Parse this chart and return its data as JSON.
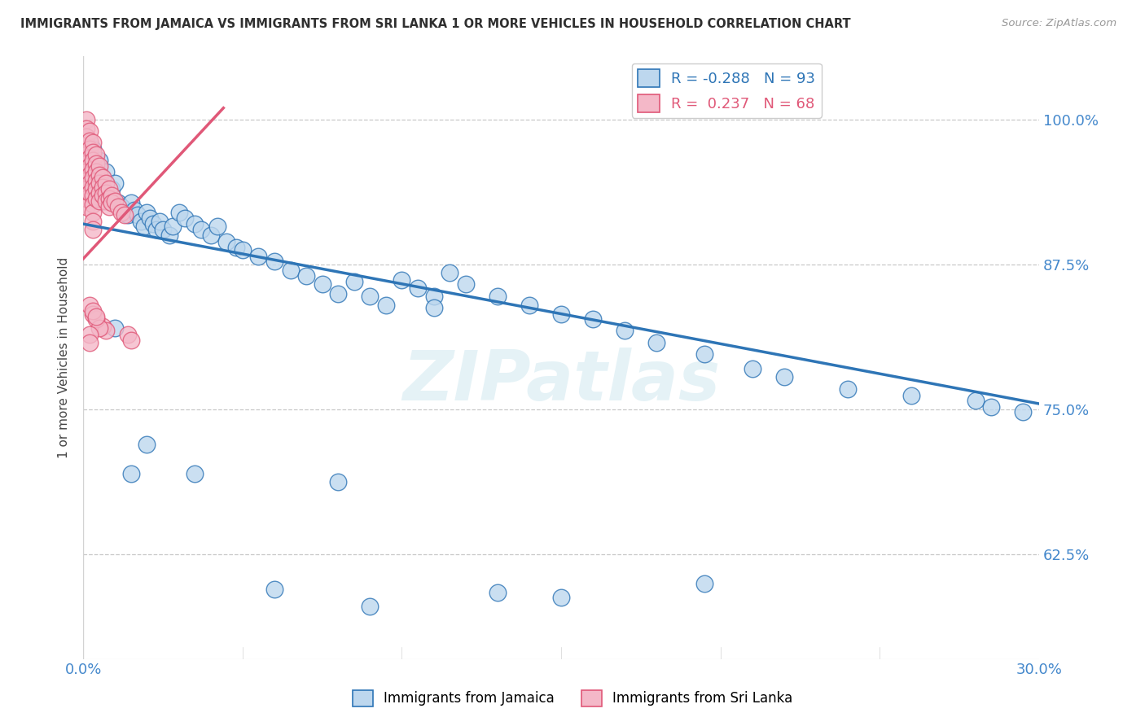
{
  "title": "IMMIGRANTS FROM JAMAICA VS IMMIGRANTS FROM SRI LANKA 1 OR MORE VEHICLES IN HOUSEHOLD CORRELATION CHART",
  "source": "Source: ZipAtlas.com",
  "ylabel": "1 or more Vehicles in Household",
  "ytick_labels": [
    "100.0%",
    "87.5%",
    "75.0%",
    "62.5%"
  ],
  "ytick_values": [
    1.0,
    0.875,
    0.75,
    0.625
  ],
  "xmin": 0.0,
  "xmax": 0.3,
  "ymin": 0.535,
  "ymax": 1.055,
  "color_jamaica": "#bdd7ee",
  "color_srilanka": "#f4b8c8",
  "line_color_jamaica": "#2e75b6",
  "line_color_srilanka": "#e05878",
  "watermark": "ZIPatlas",
  "background_color": "#ffffff",
  "grid_color": "#c8c8c8",
  "title_color": "#2f2f2f",
  "axis_color": "#4488cc",
  "jamaica_x": [
    0.001,
    0.001,
    0.002,
    0.002,
    0.002,
    0.003,
    0.003,
    0.003,
    0.003,
    0.004,
    0.004,
    0.004,
    0.005,
    0.005,
    0.005,
    0.005,
    0.006,
    0.006,
    0.006,
    0.007,
    0.007,
    0.007,
    0.008,
    0.008,
    0.009,
    0.009,
    0.01,
    0.01,
    0.011,
    0.012,
    0.013,
    0.014,
    0.015,
    0.016,
    0.017,
    0.018,
    0.019,
    0.02,
    0.021,
    0.022,
    0.023,
    0.024,
    0.025,
    0.027,
    0.028,
    0.03,
    0.032,
    0.035,
    0.037,
    0.04,
    0.042,
    0.045,
    0.048,
    0.05,
    0.055,
    0.06,
    0.065,
    0.07,
    0.075,
    0.08,
    0.085,
    0.09,
    0.095,
    0.1,
    0.105,
    0.11,
    0.115,
    0.12,
    0.13,
    0.14,
    0.15,
    0.16,
    0.17,
    0.18,
    0.195,
    0.21,
    0.22,
    0.24,
    0.26,
    0.28,
    0.285,
    0.295,
    0.09,
    0.13,
    0.15,
    0.195,
    0.11,
    0.06,
    0.08,
    0.035,
    0.02,
    0.015,
    0.01
  ],
  "jamaica_y": [
    0.96,
    0.975,
    0.95,
    0.965,
    0.98,
    0.945,
    0.955,
    0.965,
    0.975,
    0.94,
    0.952,
    0.965,
    0.935,
    0.945,
    0.955,
    0.965,
    0.93,
    0.94,
    0.95,
    0.935,
    0.945,
    0.955,
    0.93,
    0.94,
    0.935,
    0.94,
    0.93,
    0.945,
    0.928,
    0.925,
    0.92,
    0.918,
    0.928,
    0.922,
    0.918,
    0.912,
    0.908,
    0.92,
    0.915,
    0.91,
    0.905,
    0.912,
    0.905,
    0.9,
    0.908,
    0.92,
    0.915,
    0.91,
    0.905,
    0.9,
    0.908,
    0.895,
    0.89,
    0.888,
    0.882,
    0.878,
    0.87,
    0.865,
    0.858,
    0.85,
    0.86,
    0.848,
    0.84,
    0.862,
    0.855,
    0.848,
    0.868,
    0.858,
    0.848,
    0.84,
    0.832,
    0.828,
    0.818,
    0.808,
    0.798,
    0.785,
    0.778,
    0.768,
    0.762,
    0.758,
    0.752,
    0.748,
    0.58,
    0.592,
    0.588,
    0.6,
    0.838,
    0.595,
    0.688,
    0.695,
    0.72,
    0.695,
    0.82
  ],
  "srilanka_x": [
    0.001,
    0.001,
    0.001,
    0.001,
    0.001,
    0.001,
    0.001,
    0.001,
    0.001,
    0.001,
    0.001,
    0.002,
    0.002,
    0.002,
    0.002,
    0.002,
    0.002,
    0.002,
    0.002,
    0.003,
    0.003,
    0.003,
    0.003,
    0.003,
    0.003,
    0.003,
    0.003,
    0.003,
    0.003,
    0.003,
    0.004,
    0.004,
    0.004,
    0.004,
    0.004,
    0.004,
    0.005,
    0.005,
    0.005,
    0.005,
    0.005,
    0.006,
    0.006,
    0.006,
    0.007,
    0.007,
    0.007,
    0.008,
    0.008,
    0.008,
    0.009,
    0.009,
    0.01,
    0.011,
    0.012,
    0.013,
    0.014,
    0.015,
    0.006,
    0.007,
    0.002,
    0.003,
    0.004,
    0.005,
    0.003,
    0.004,
    0.002,
    0.002
  ],
  "srilanka_y": [
    1.0,
    0.992,
    0.985,
    0.978,
    0.97,
    0.962,
    0.955,
    0.947,
    0.94,
    0.932,
    0.925,
    0.99,
    0.982,
    0.975,
    0.967,
    0.96,
    0.952,
    0.945,
    0.937,
    0.98,
    0.972,
    0.965,
    0.957,
    0.95,
    0.942,
    0.935,
    0.927,
    0.92,
    0.912,
    0.905,
    0.97,
    0.962,
    0.955,
    0.947,
    0.94,
    0.932,
    0.96,
    0.952,
    0.945,
    0.937,
    0.93,
    0.95,
    0.942,
    0.935,
    0.945,
    0.937,
    0.93,
    0.94,
    0.932,
    0.925,
    0.935,
    0.928,
    0.93,
    0.925,
    0.92,
    0.918,
    0.815,
    0.81,
    0.822,
    0.818,
    0.84,
    0.832,
    0.828,
    0.82,
    0.835,
    0.83,
    0.815,
    0.808
  ],
  "jamaica_line_x": [
    0.0,
    0.3
  ],
  "jamaica_line_y": [
    0.91,
    0.755
  ],
  "srilanka_line_x": [
    0.0,
    0.044
  ],
  "srilanka_line_y": [
    0.88,
    1.01
  ]
}
